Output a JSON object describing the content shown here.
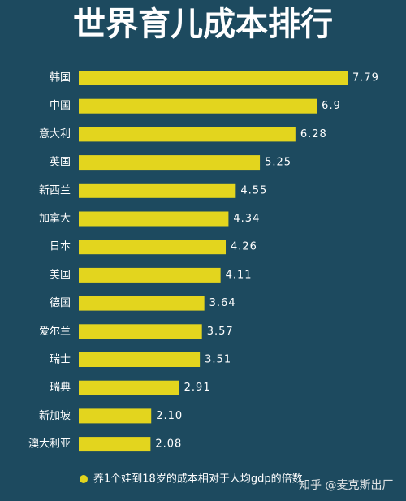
{
  "chart_data": {
    "type": "bar",
    "orientation": "horizontal",
    "title": "世界育儿成本排行",
    "categories": [
      "韩国",
      "中国",
      "意大利",
      "英国",
      "新西兰",
      "加拿大",
      "日本",
      "美国",
      "德国",
      "爱尔兰",
      "瑞士",
      "瑞典",
      "新加坡",
      "澳大利亚"
    ],
    "series": [
      {
        "name": "养1个娃到18岁的成本相对于人均gdp的倍数",
        "color": "#e3d51e",
        "values": [
          7.79,
          6.9,
          6.28,
          5.25,
          4.55,
          4.34,
          4.26,
          4.11,
          3.64,
          3.57,
          3.51,
          2.91,
          2.1,
          2.08
        ],
        "value_labels": [
          "7.79",
          "6.9",
          "6.28",
          "5.25",
          "4.55",
          "4.34",
          "4.26",
          "4.11",
          "3.64",
          "3.57",
          "3.51",
          "2.91",
          "2.10",
          "2.08"
        ]
      }
    ],
    "watermark": "知乎 @麦克斯出厂"
  }
}
